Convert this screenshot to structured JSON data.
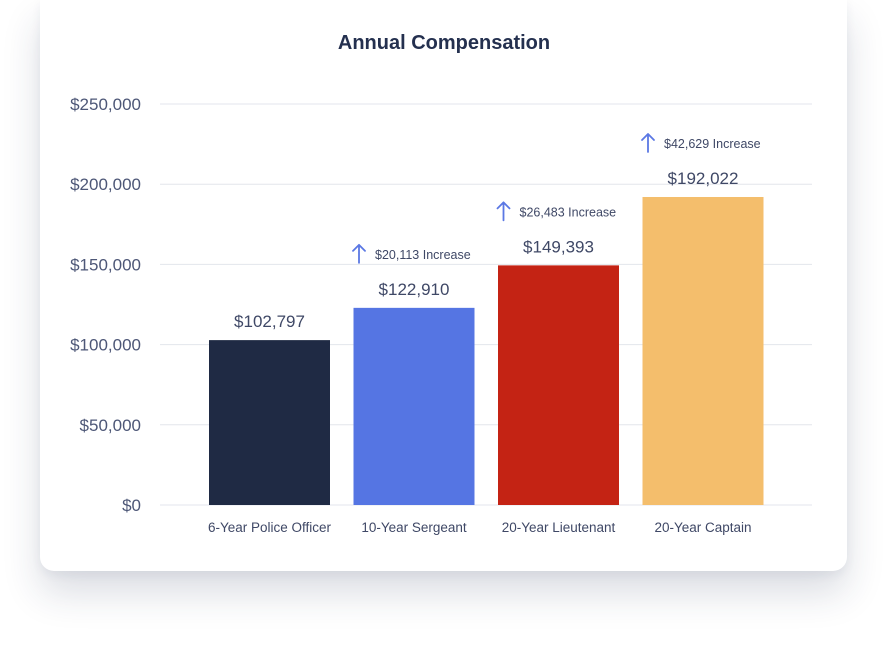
{
  "chart_data": {
    "type": "bar",
    "title": "Annual Compensation",
    "categories": [
      "6-Year Police Officer",
      "10-Year Sergeant",
      "20-Year Lieutenant",
      "20-Year Captain"
    ],
    "values": [
      102797,
      122910,
      149393,
      192022
    ],
    "value_labels": [
      "$102,797",
      "$122,910",
      "$149,393",
      "$192,022"
    ],
    "increase_labels": [
      "",
      "$20,113 Increase",
      "$26,483 Increase",
      "$42,629 Increase"
    ],
    "colors": [
      "#1f2a44",
      "#5575e3",
      "#c42314",
      "#f4be6c"
    ],
    "arrow_color": "#5b78e4",
    "ylim": [
      0,
      250000
    ],
    "yticks": [
      0,
      50000,
      100000,
      150000,
      200000,
      250000
    ],
    "ytick_labels": [
      "$0",
      "$50,000",
      "$100,000",
      "$150,000",
      "$200,000",
      "$250,000"
    ],
    "xlabel": "",
    "ylabel": "",
    "grid": true,
    "legend": "none"
  }
}
